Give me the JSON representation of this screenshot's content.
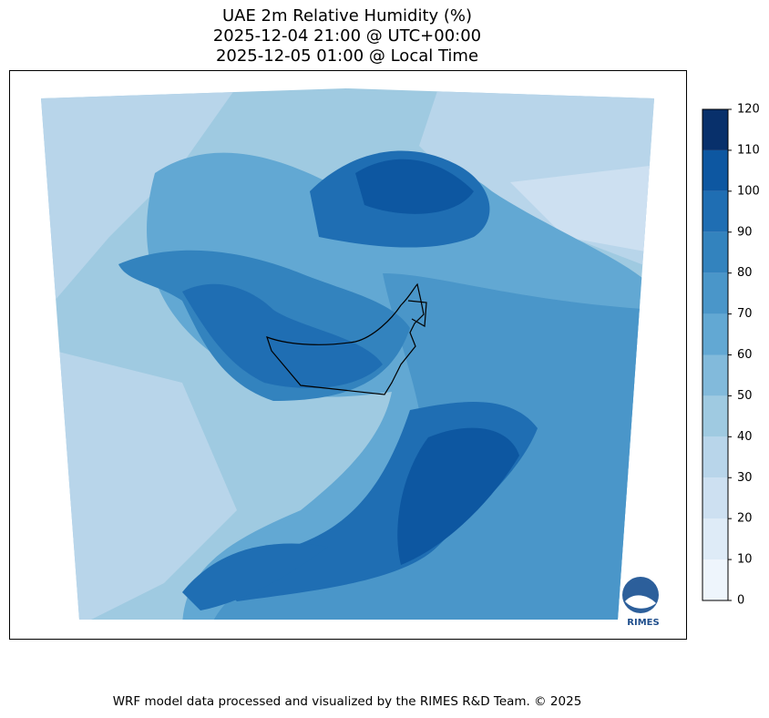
{
  "title_lines": [
    "UAE 2m Relative Humidity (%)",
    "2025-12-04 21:00 @ UTC+00:00",
    "2025-12-05 01:00 @ Local Time"
  ],
  "colorbar": {
    "ticks": [
      0,
      10,
      20,
      30,
      40,
      50,
      60,
      70,
      80,
      90,
      100,
      110,
      120
    ],
    "colors": [
      "#eef5fc",
      "#deebf7",
      "#cde0f1",
      "#b8d5ea",
      "#9fcae1",
      "#82badb",
      "#62a8d3",
      "#4a96c9",
      "#3383be",
      "#1f6eb3",
      "#0d57a1",
      "#08306b"
    ]
  },
  "logo_text": "RIMES",
  "footer": "WRF model data processed and visualized by the RIMES R&D Team. © 2025"
}
